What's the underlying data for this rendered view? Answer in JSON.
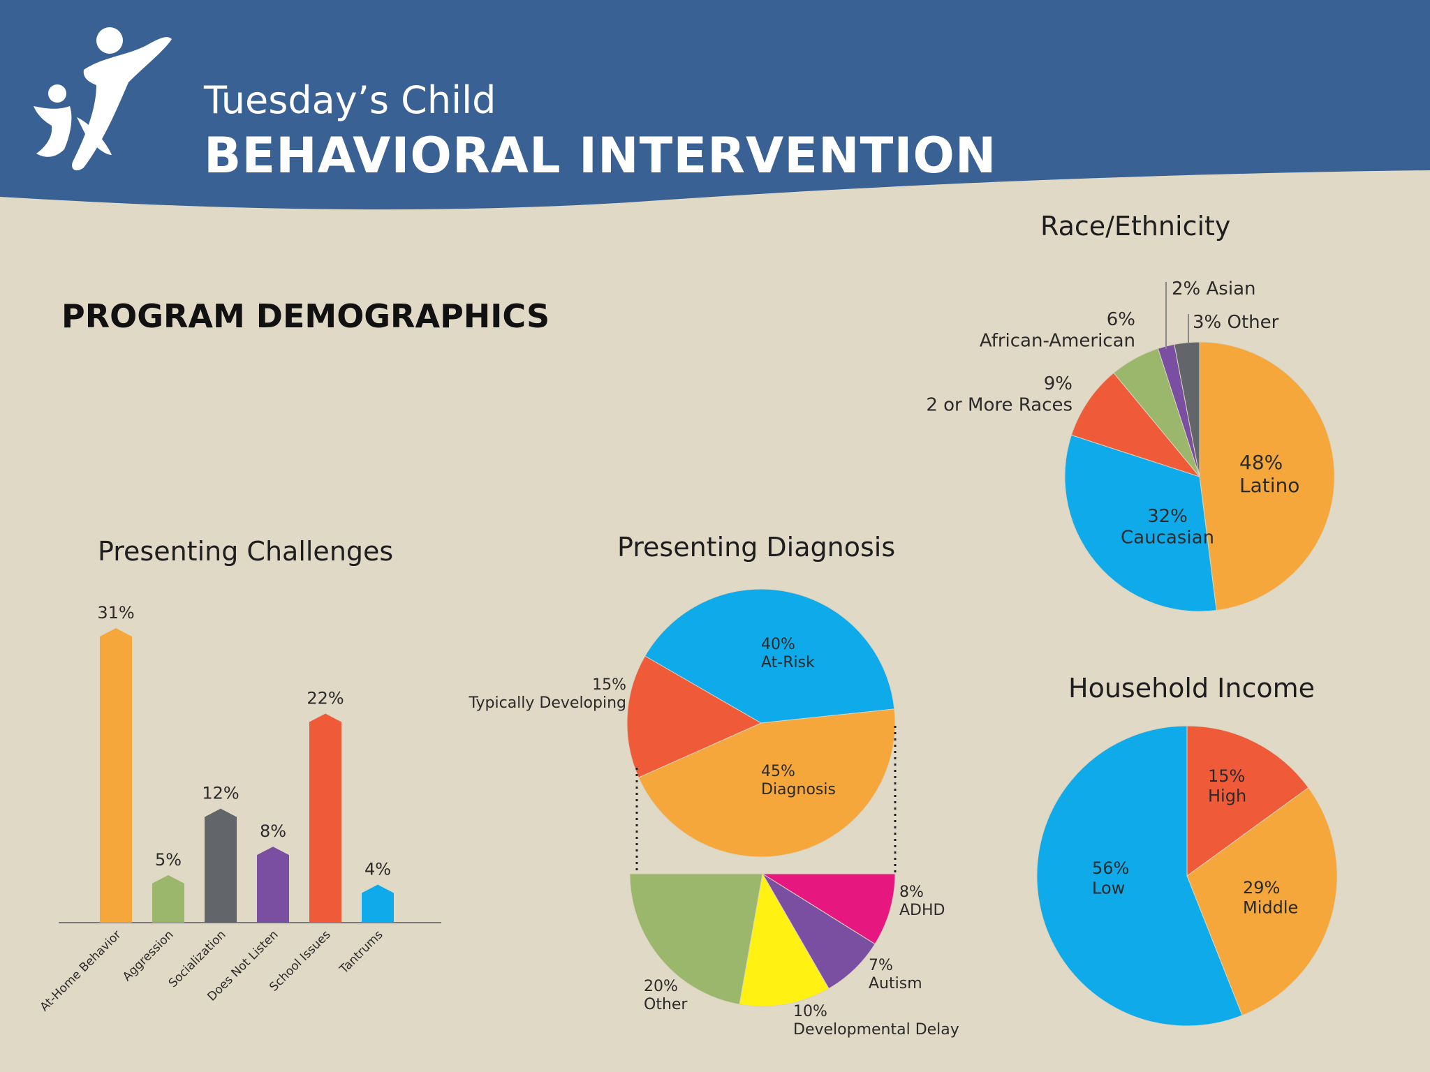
{
  "header": {
    "brand_name": "Tuesday’s Child",
    "program": "BEHAVIORAL INTERVENTION",
    "banner_color": "#3a6193"
  },
  "section_title": "PROGRAM DEMOGRAPHICS",
  "colors": {
    "orange": "#f6a73c",
    "blue": "#0eaaea",
    "red": "#ef5a39",
    "green": "#9bb76b",
    "gray": "#62666a",
    "purple": "#7a4fa2",
    "yellow": "#fff212",
    "magenta": "#e6187f",
    "background": "#dfd9c5"
  },
  "chart_data": [
    {
      "id": "presenting-challenges",
      "type": "bar",
      "title": "Presenting Challenges",
      "categories": [
        "At-Home Behavior",
        "Aggression",
        "Socialization",
        "Does Not Listen",
        "School Issues",
        "Tantrums"
      ],
      "values": [
        31,
        5,
        12,
        8,
        22,
        4
      ],
      "value_labels": [
        "31%",
        "5%",
        "12%",
        "8%",
        "22%",
        "4%"
      ],
      "colors": [
        "#f6a73c",
        "#9bb76b",
        "#62666a",
        "#7a4fa2",
        "#ef5a39",
        "#0eaaea"
      ],
      "ylim": [
        0,
        31
      ],
      "xlabel": "",
      "ylabel": "",
      "grid": false,
      "legend": "none"
    },
    {
      "id": "presenting-diagnosis",
      "type": "pie",
      "title": "Presenting Diagnosis",
      "slices": [
        {
          "label": "At-Risk",
          "pct_label": "40%",
          "value": 40,
          "color": "#0eaaea"
        },
        {
          "label": "Diagnosis",
          "pct_label": "45%",
          "value": 45,
          "color": "#f6a73c"
        },
        {
          "label": "Typically Developing",
          "pct_label": "15%",
          "value": 15,
          "color": "#ef5a39"
        }
      ],
      "breakdown_of": "Diagnosis",
      "breakdown": [
        {
          "label": "ADHD",
          "pct_label": "8%",
          "value": 8,
          "color": "#e6187f"
        },
        {
          "label": "Autism",
          "pct_label": "7%",
          "value": 7,
          "color": "#7a4fa2"
        },
        {
          "label": "Developmental Delay",
          "pct_label": "10%",
          "value": 10,
          "color": "#fff212"
        },
        {
          "label": "Other",
          "pct_label": "20%",
          "value": 20,
          "color": "#9bb76b"
        }
      ]
    },
    {
      "id": "race-ethnicity",
      "type": "pie",
      "title": "Race/Ethnicity",
      "slices": [
        {
          "label": "Latino",
          "pct_label": "48%",
          "value": 48,
          "color": "#f6a73c"
        },
        {
          "label": "Caucasian",
          "pct_label": "32%",
          "value": 32,
          "color": "#0eaaea"
        },
        {
          "label": "2 or More Races",
          "pct_label": "9%",
          "value": 9,
          "color": "#ef5a39"
        },
        {
          "label": "African-American",
          "pct_label": "6%",
          "value": 6,
          "color": "#9bb76b"
        },
        {
          "label": "Asian",
          "pct_label": "2%",
          "value": 2,
          "color": "#7a4fa2"
        },
        {
          "label": "Other",
          "pct_label": "3%",
          "value": 3,
          "color": "#62666a"
        }
      ]
    },
    {
      "id": "household-income",
      "type": "pie",
      "title": "Household Income",
      "slices": [
        {
          "label": "High",
          "pct_label": "15%",
          "value": 15,
          "color": "#ef5a39"
        },
        {
          "label": "Middle",
          "pct_label": "29%",
          "value": 29,
          "color": "#f6a73c"
        },
        {
          "label": "Low",
          "pct_label": "56%",
          "value": 56,
          "color": "#0eaaea"
        }
      ]
    }
  ]
}
